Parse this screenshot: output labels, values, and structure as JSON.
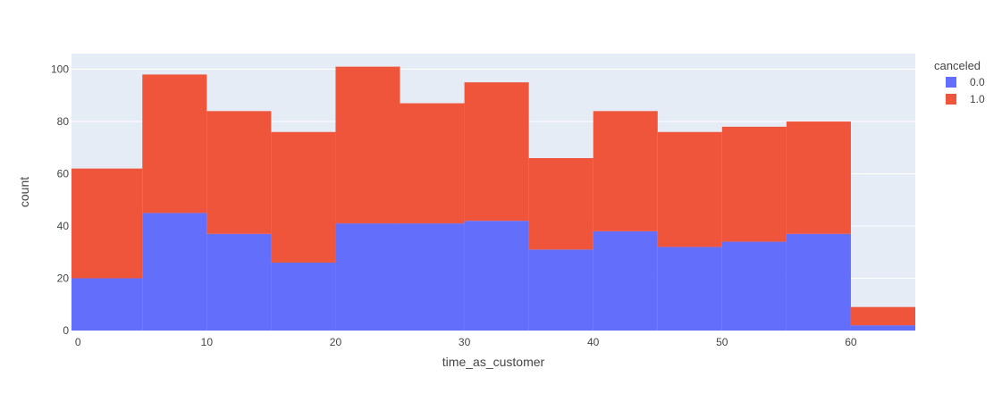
{
  "chart_data": {
    "type": "bar",
    "barmode": "stack",
    "histogram": true,
    "bins": [
      {
        "start": -5,
        "end": 5
      },
      {
        "start": 5,
        "end": 10
      },
      {
        "start": 10,
        "end": 15
      },
      {
        "start": 15,
        "end": 20
      },
      {
        "start": 20,
        "end": 25
      },
      {
        "start": 25,
        "end": 30
      },
      {
        "start": 30,
        "end": 35
      },
      {
        "start": 35,
        "end": 40
      },
      {
        "start": 40,
        "end": 45
      },
      {
        "start": 45,
        "end": 50
      },
      {
        "start": 50,
        "end": 55
      },
      {
        "start": 55,
        "end": 60
      },
      {
        "start": 60,
        "end": 65
      }
    ],
    "series": [
      {
        "name": "0.0",
        "color": "#636efa",
        "values": [
          20,
          45,
          37,
          26,
          41,
          41,
          42,
          31,
          38,
          32,
          34,
          37,
          2
        ]
      },
      {
        "name": "1.0",
        "color": "#ef553b",
        "values": [
          42,
          53,
          47,
          50,
          60,
          46,
          53,
          35,
          46,
          44,
          44,
          43,
          7
        ]
      }
    ],
    "xlabel": "time_as_customer",
    "ylabel": "count",
    "xlim": [
      -0.5,
      65
    ],
    "ylim": [
      0,
      106
    ],
    "xticks": [
      0,
      10,
      20,
      30,
      40,
      50,
      60
    ],
    "yticks": [
      0,
      20,
      40,
      60,
      80,
      100
    ],
    "legend": {
      "title": "canceled",
      "position": "top-right"
    },
    "grid": true,
    "background": "#e5ecf6"
  }
}
